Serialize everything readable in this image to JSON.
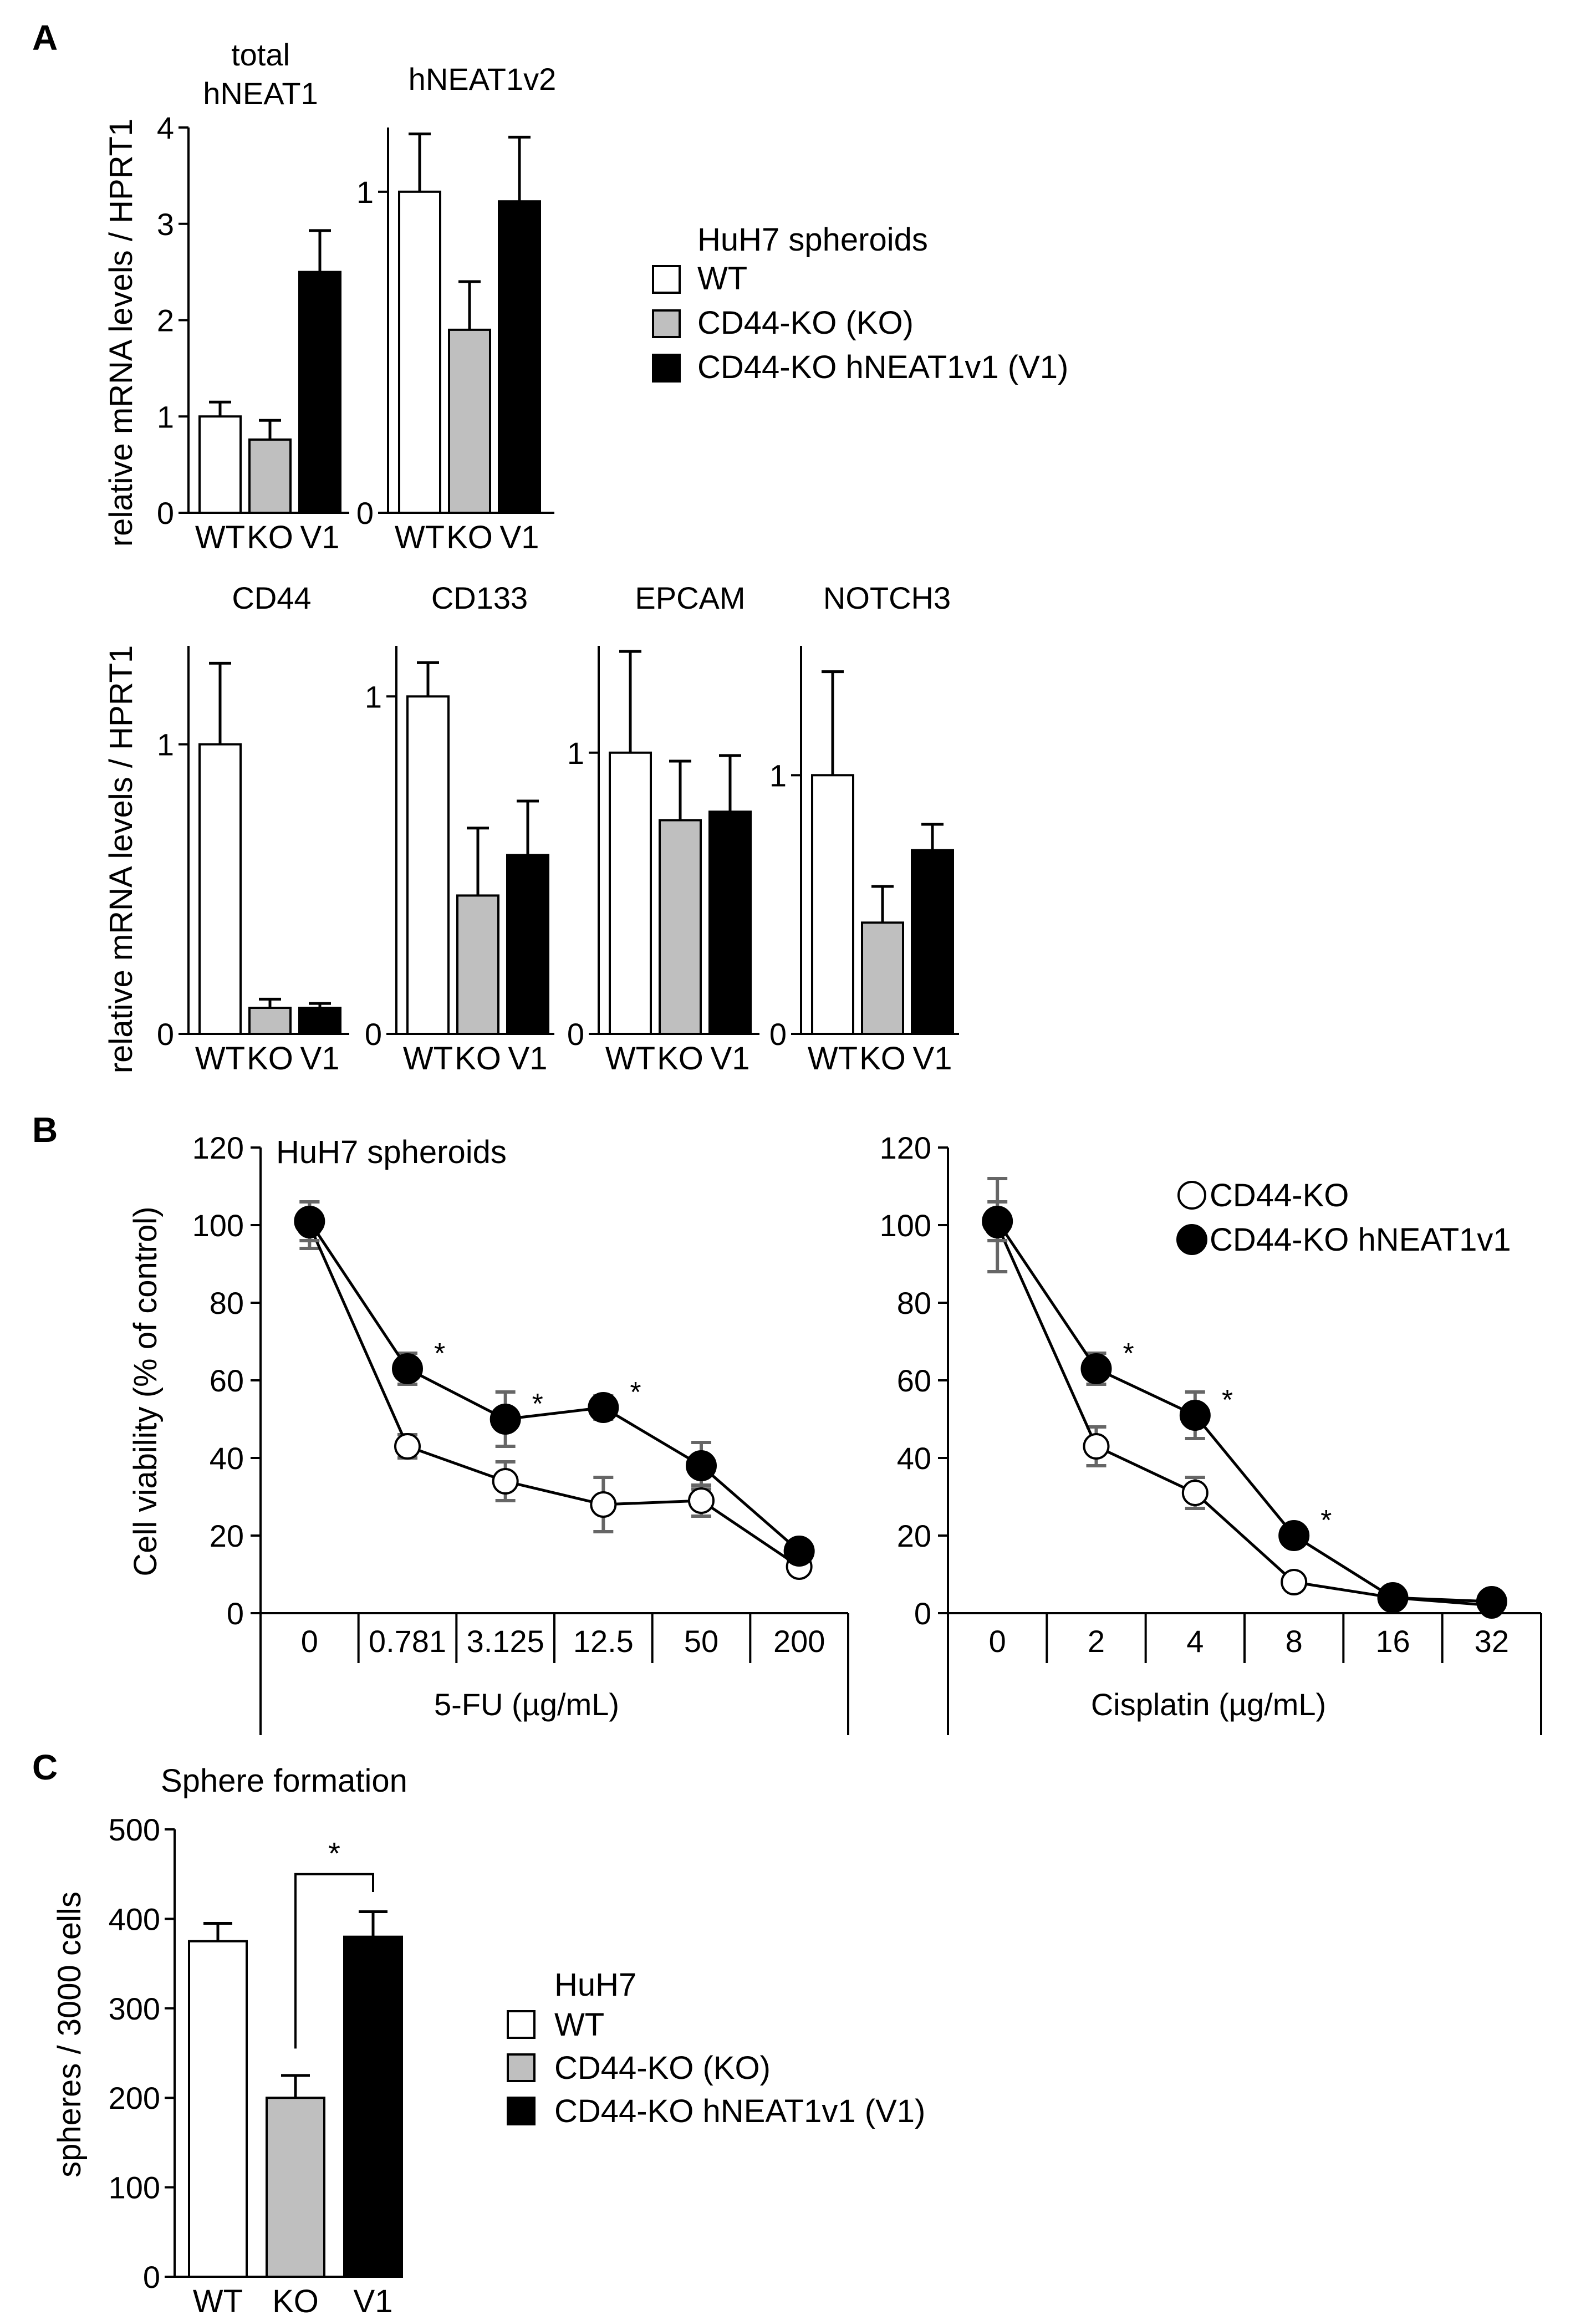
{
  "panels": {
    "A": {
      "letter": "A",
      "ylabel": "relative mRNA levels / HPRT1",
      "legend": {
        "title": "HuH7 spheroids",
        "entries": [
          {
            "label": "WT",
            "color": "#ffffff"
          },
          {
            "label": "CD44-KO (KO)",
            "color": "#bfbfbf"
          },
          {
            "label": "CD44-KO hNEAT1v1 (V1)",
            "color": "#000000"
          }
        ]
      }
    },
    "B": {
      "letter": "B",
      "title": "HuH7 spheroids",
      "ylabel": "Cell viability (% of control)",
      "legend": {
        "entries": [
          {
            "label": "CD44-KO",
            "marker": "open"
          },
          {
            "label": "CD44-KO hNEAT1v1",
            "marker": "filled"
          }
        ]
      }
    },
    "C": {
      "letter": "C",
      "title": "Sphere formation",
      "ylabel": "spheres / 3000 cells",
      "significance": "*",
      "legend": {
        "title": "HuH7",
        "entries": [
          {
            "label": "WT",
            "color": "#ffffff"
          },
          {
            "label": "CD44-KO (KO)",
            "color": "#bfbfbf"
          },
          {
            "label": "CD44-KO hNEAT1v1 (V1)",
            "color": "#000000"
          }
        ]
      }
    }
  },
  "chart_data": [
    {
      "panel": "A",
      "type": "bar",
      "title": "total\nhNEAT1",
      "categories": [
        "WT",
        "KO",
        "V1"
      ],
      "values": [
        1.0,
        0.76,
        2.5
      ],
      "errors": [
        0.15,
        0.2,
        0.43
      ],
      "colors": [
        "#ffffff",
        "#bfbfbf",
        "#000000"
      ],
      "ylim": [
        0,
        4
      ],
      "yticks": [
        "0",
        "1",
        "2",
        "3",
        "4"
      ]
    },
    {
      "panel": "A",
      "type": "bar",
      "title": "hNEAT1v2",
      "categories": [
        "WT",
        "KO",
        "V1"
      ],
      "values": [
        1.0,
        0.57,
        0.97
      ],
      "errors": [
        0.18,
        0.15,
        0.2
      ],
      "colors": [
        "#ffffff",
        "#bfbfbf",
        "#000000"
      ],
      "ylim": [
        0,
        1.2
      ],
      "yticks": [
        "0",
        "1"
      ],
      "ytick_values": [
        0,
        1
      ]
    },
    {
      "panel": "A",
      "type": "bar",
      "title": "CD44",
      "categories": [
        "WT",
        "KO",
        "V1"
      ],
      "values": [
        1.0,
        0.09,
        0.09
      ],
      "errors": [
        0.28,
        0.03,
        0.015
      ],
      "colors": [
        "#ffffff",
        "#bfbfbf",
        "#000000"
      ],
      "ylim": [
        0,
        1.34
      ],
      "yticks": [
        "0",
        "1"
      ],
      "ytick_values": [
        0,
        1
      ]
    },
    {
      "panel": "A",
      "type": "bar",
      "title": "CD133",
      "categories": [
        "WT",
        "KO",
        "V1"
      ],
      "values": [
        1.0,
        0.41,
        0.53
      ],
      "errors": [
        0.1,
        0.2,
        0.16
      ],
      "colors": [
        "#ffffff",
        "#bfbfbf",
        "#000000"
      ],
      "ylim": [
        0,
        1.15
      ],
      "yticks": [
        "0",
        "1"
      ],
      "ytick_values": [
        0,
        1
      ]
    },
    {
      "panel": "A",
      "type": "bar",
      "title": "EPCAM",
      "categories": [
        "WT",
        "KO",
        "V1"
      ],
      "values": [
        1.0,
        0.76,
        0.79
      ],
      "errors": [
        0.36,
        0.21,
        0.2
      ],
      "colors": [
        "#ffffff",
        "#bfbfbf",
        "#000000"
      ],
      "ylim": [
        0,
        1.38
      ],
      "yticks": [
        "0",
        "1"
      ],
      "ytick_values": [
        0,
        1
      ]
    },
    {
      "panel": "A",
      "type": "bar",
      "title": "NOTCH3",
      "categories": [
        "WT",
        "KO",
        "V1"
      ],
      "values": [
        1.0,
        0.43,
        0.71
      ],
      "errors": [
        0.4,
        0.14,
        0.1
      ],
      "colors": [
        "#ffffff",
        "#bfbfbf",
        "#000000"
      ],
      "ylim": [
        0,
        1.5
      ],
      "yticks": [
        "0",
        "1"
      ],
      "ytick_values": [
        0,
        1
      ]
    },
    {
      "panel": "B",
      "type": "line",
      "xlabel": "5-FU (µg/mL)",
      "categories": [
        "0",
        "0.781",
        "3.125",
        "12.5",
        "50",
        "200"
      ],
      "ylim": [
        0,
        120
      ],
      "yticks": [
        "0",
        "20",
        "40",
        "60",
        "80",
        "100",
        "120"
      ],
      "series": [
        {
          "name": "CD44-KO",
          "marker": "open",
          "values": [
            100,
            43,
            34,
            28,
            29,
            12
          ],
          "errors": [
            6,
            3,
            5,
            7,
            4,
            2
          ]
        },
        {
          "name": "CD44-KO hNEAT1v1",
          "marker": "filled",
          "values": [
            101,
            63,
            50,
            53,
            38,
            16
          ],
          "errors": [
            5,
            4,
            7,
            3,
            6,
            2
          ]
        }
      ],
      "significance": [
        "",
        "*",
        "*",
        "*",
        "",
        ""
      ]
    },
    {
      "panel": "B",
      "type": "line",
      "xlabel": "Cisplatin (µg/mL)",
      "categories": [
        "0",
        "2",
        "4",
        "8",
        "16",
        "32"
      ],
      "ylim": [
        0,
        120
      ],
      "yticks": [
        "0",
        "20",
        "40",
        "60",
        "80",
        "100",
        "120"
      ],
      "series": [
        {
          "name": "CD44-KO",
          "marker": "open",
          "values": [
            100,
            43,
            31,
            8,
            4,
            2
          ],
          "errors": [
            12,
            5,
            4,
            1,
            1,
            1
          ]
        },
        {
          "name": "CD44-KO hNEAT1v1",
          "marker": "filled",
          "values": [
            101,
            63,
            51,
            20,
            4,
            3
          ],
          "errors": [
            5,
            4,
            6,
            1,
            1,
            1
          ]
        }
      ],
      "significance": [
        "",
        "*",
        "*",
        "*",
        "",
        ""
      ]
    },
    {
      "panel": "C",
      "type": "bar",
      "categories": [
        "WT",
        "KO",
        "V1"
      ],
      "values": [
        375,
        200,
        380
      ],
      "errors": [
        20,
        25,
        28
      ],
      "colors": [
        "#ffffff",
        "#bfbfbf",
        "#000000"
      ],
      "ylim": [
        0,
        500
      ],
      "yticks": [
        "0",
        "100",
        "200",
        "300",
        "400",
        "500"
      ]
    }
  ]
}
